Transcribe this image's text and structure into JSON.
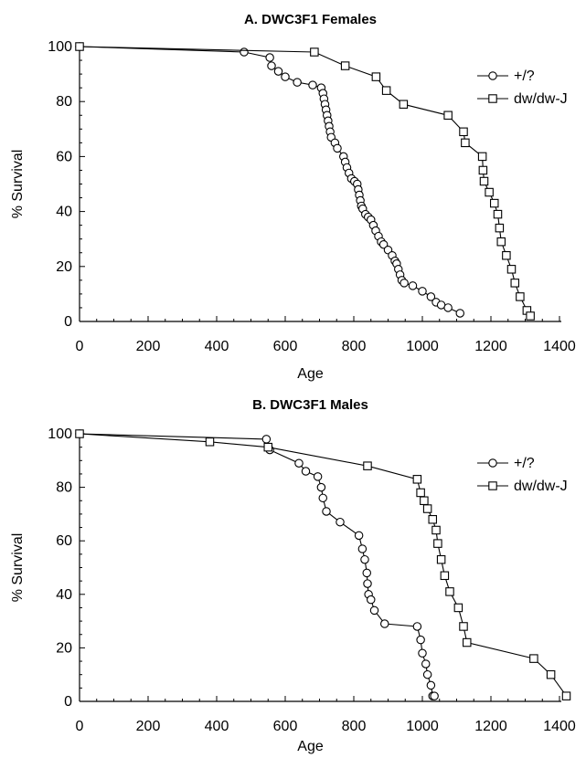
{
  "chart_data": [
    {
      "type": "line",
      "title": "A.  DWC3F1  Females",
      "xlabel": "Age",
      "ylabel": "% Survival",
      "xlim": [
        0,
        1400
      ],
      "ylim": [
        0,
        100
      ],
      "xticks": [
        0,
        200,
        400,
        600,
        800,
        1000,
        1200,
        1400
      ],
      "yticks": [
        0,
        20,
        40,
        60,
        80,
        100
      ],
      "grid": false,
      "legend": "top-right",
      "series": [
        {
          "name": "+/?",
          "marker": "circle",
          "x": [
            0,
            480,
            555,
            560,
            580,
            600,
            635,
            680,
            705,
            710,
            713,
            716,
            719,
            722,
            725,
            728,
            731,
            734,
            745,
            752,
            770,
            775,
            780,
            786,
            793,
            802,
            810,
            813,
            816,
            819,
            822,
            826,
            834,
            842,
            850,
            857,
            864,
            872,
            880,
            887,
            900,
            912,
            920,
            925,
            930,
            935,
            940,
            947,
            972,
            1000,
            1025,
            1040,
            1055,
            1075,
            1110
          ],
          "y": [
            100,
            98,
            96,
            93,
            91,
            89,
            87,
            86,
            85,
            83,
            81,
            79,
            77,
            75,
            73,
            71,
            69,
            67,
            65,
            63,
            60,
            58,
            56,
            54,
            52,
            51,
            50,
            48,
            46,
            44,
            42,
            41,
            39,
            38,
            37,
            35,
            33,
            31,
            29,
            28,
            26,
            24,
            22,
            21,
            19,
            17,
            15,
            14,
            13,
            11,
            9,
            7,
            6,
            5,
            3
          ]
        },
        {
          "name": "dw/dw-J",
          "marker": "square",
          "x": [
            0,
            685,
            775,
            865,
            895,
            945,
            1075,
            1120,
            1125,
            1175,
            1177,
            1180,
            1195,
            1210,
            1220,
            1225,
            1230,
            1245,
            1260,
            1270,
            1285,
            1305,
            1315
          ],
          "y": [
            100,
            98,
            93,
            89,
            84,
            79,
            75,
            69,
            65,
            60,
            55,
            51,
            47,
            43,
            39,
            34,
            29,
            24,
            19,
            14,
            9,
            4,
            2
          ]
        }
      ]
    },
    {
      "type": "line",
      "title": "B.  DWC3F1  Males",
      "xlabel": "Age",
      "ylabel": "% Survival",
      "xlim": [
        0,
        1400
      ],
      "ylim": [
        0,
        100
      ],
      "xticks": [
        0,
        200,
        400,
        600,
        800,
        1000,
        1200,
        1400
      ],
      "yticks": [
        0,
        20,
        40,
        60,
        80,
        100
      ],
      "grid": false,
      "legend": "top-right",
      "series": [
        {
          "name": "+/?",
          "marker": "circle",
          "x": [
            0,
            545,
            555,
            640,
            660,
            695,
            705,
            710,
            720,
            760,
            815,
            825,
            832,
            838,
            840,
            843,
            850,
            860,
            890,
            985,
            995,
            1000,
            1010,
            1015,
            1025,
            1030,
            1035
          ],
          "y": [
            100,
            98,
            94,
            89,
            86,
            84,
            80,
            76,
            71,
            67,
            62,
            57,
            53,
            48,
            44,
            40,
            38,
            34,
            29,
            28,
            23,
            18,
            14,
            10,
            6,
            2,
            2
          ]
        },
        {
          "name": "dw/dw-J",
          "marker": "square",
          "x": [
            0,
            380,
            550,
            840,
            985,
            995,
            1005,
            1015,
            1030,
            1040,
            1045,
            1055,
            1065,
            1080,
            1105,
            1120,
            1130,
            1325,
            1375,
            1420
          ],
          "y": [
            100,
            97,
            95,
            88,
            83,
            78,
            75,
            72,
            68,
            64,
            59,
            53,
            47,
            41,
            35,
            28,
            22,
            16,
            10,
            2
          ]
        }
      ]
    }
  ]
}
